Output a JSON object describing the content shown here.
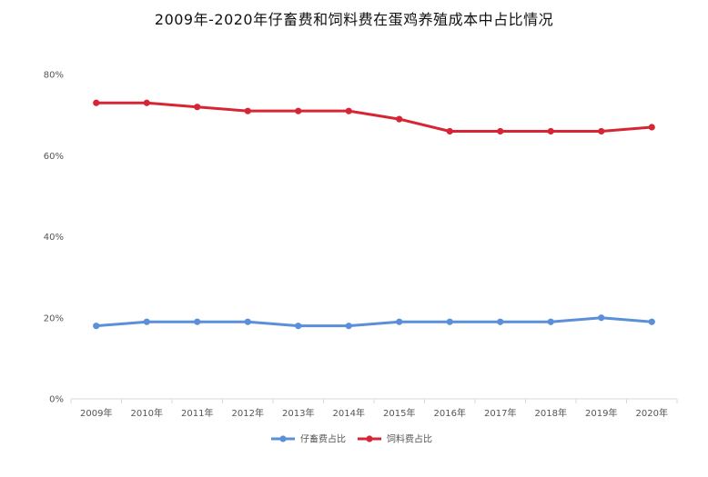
{
  "chart_data": {
    "type": "line",
    "title": "2009年-2020年仔畜费和饲料费在蛋鸡养殖成本中占比情况",
    "categories": [
      "2009年",
      "2010年",
      "2011年",
      "2012年",
      "2013年",
      "2014年",
      "2015年",
      "2016年",
      "2017年",
      "2018年",
      "2019年",
      "2020年"
    ],
    "series": [
      {
        "name": "仔畜费占比",
        "color": "#5b8fd9",
        "values": [
          18,
          19,
          19,
          19,
          18,
          18,
          19,
          19,
          19,
          19,
          20,
          19
        ]
      },
      {
        "name": "饲料费占比",
        "color": "#d62535",
        "values": [
          73,
          73,
          72,
          71,
          71,
          71,
          69,
          66,
          66,
          66,
          66,
          67
        ]
      }
    ],
    "ylim": [
      0,
      80
    ],
    "yticks": [
      "0%",
      "20%",
      "40%",
      "60%",
      "80%"
    ],
    "ytick_values": [
      0,
      20,
      40,
      60,
      80
    ],
    "xlabel": "",
    "ylabel": "",
    "grid": false,
    "legend_position": "bottom-center"
  }
}
